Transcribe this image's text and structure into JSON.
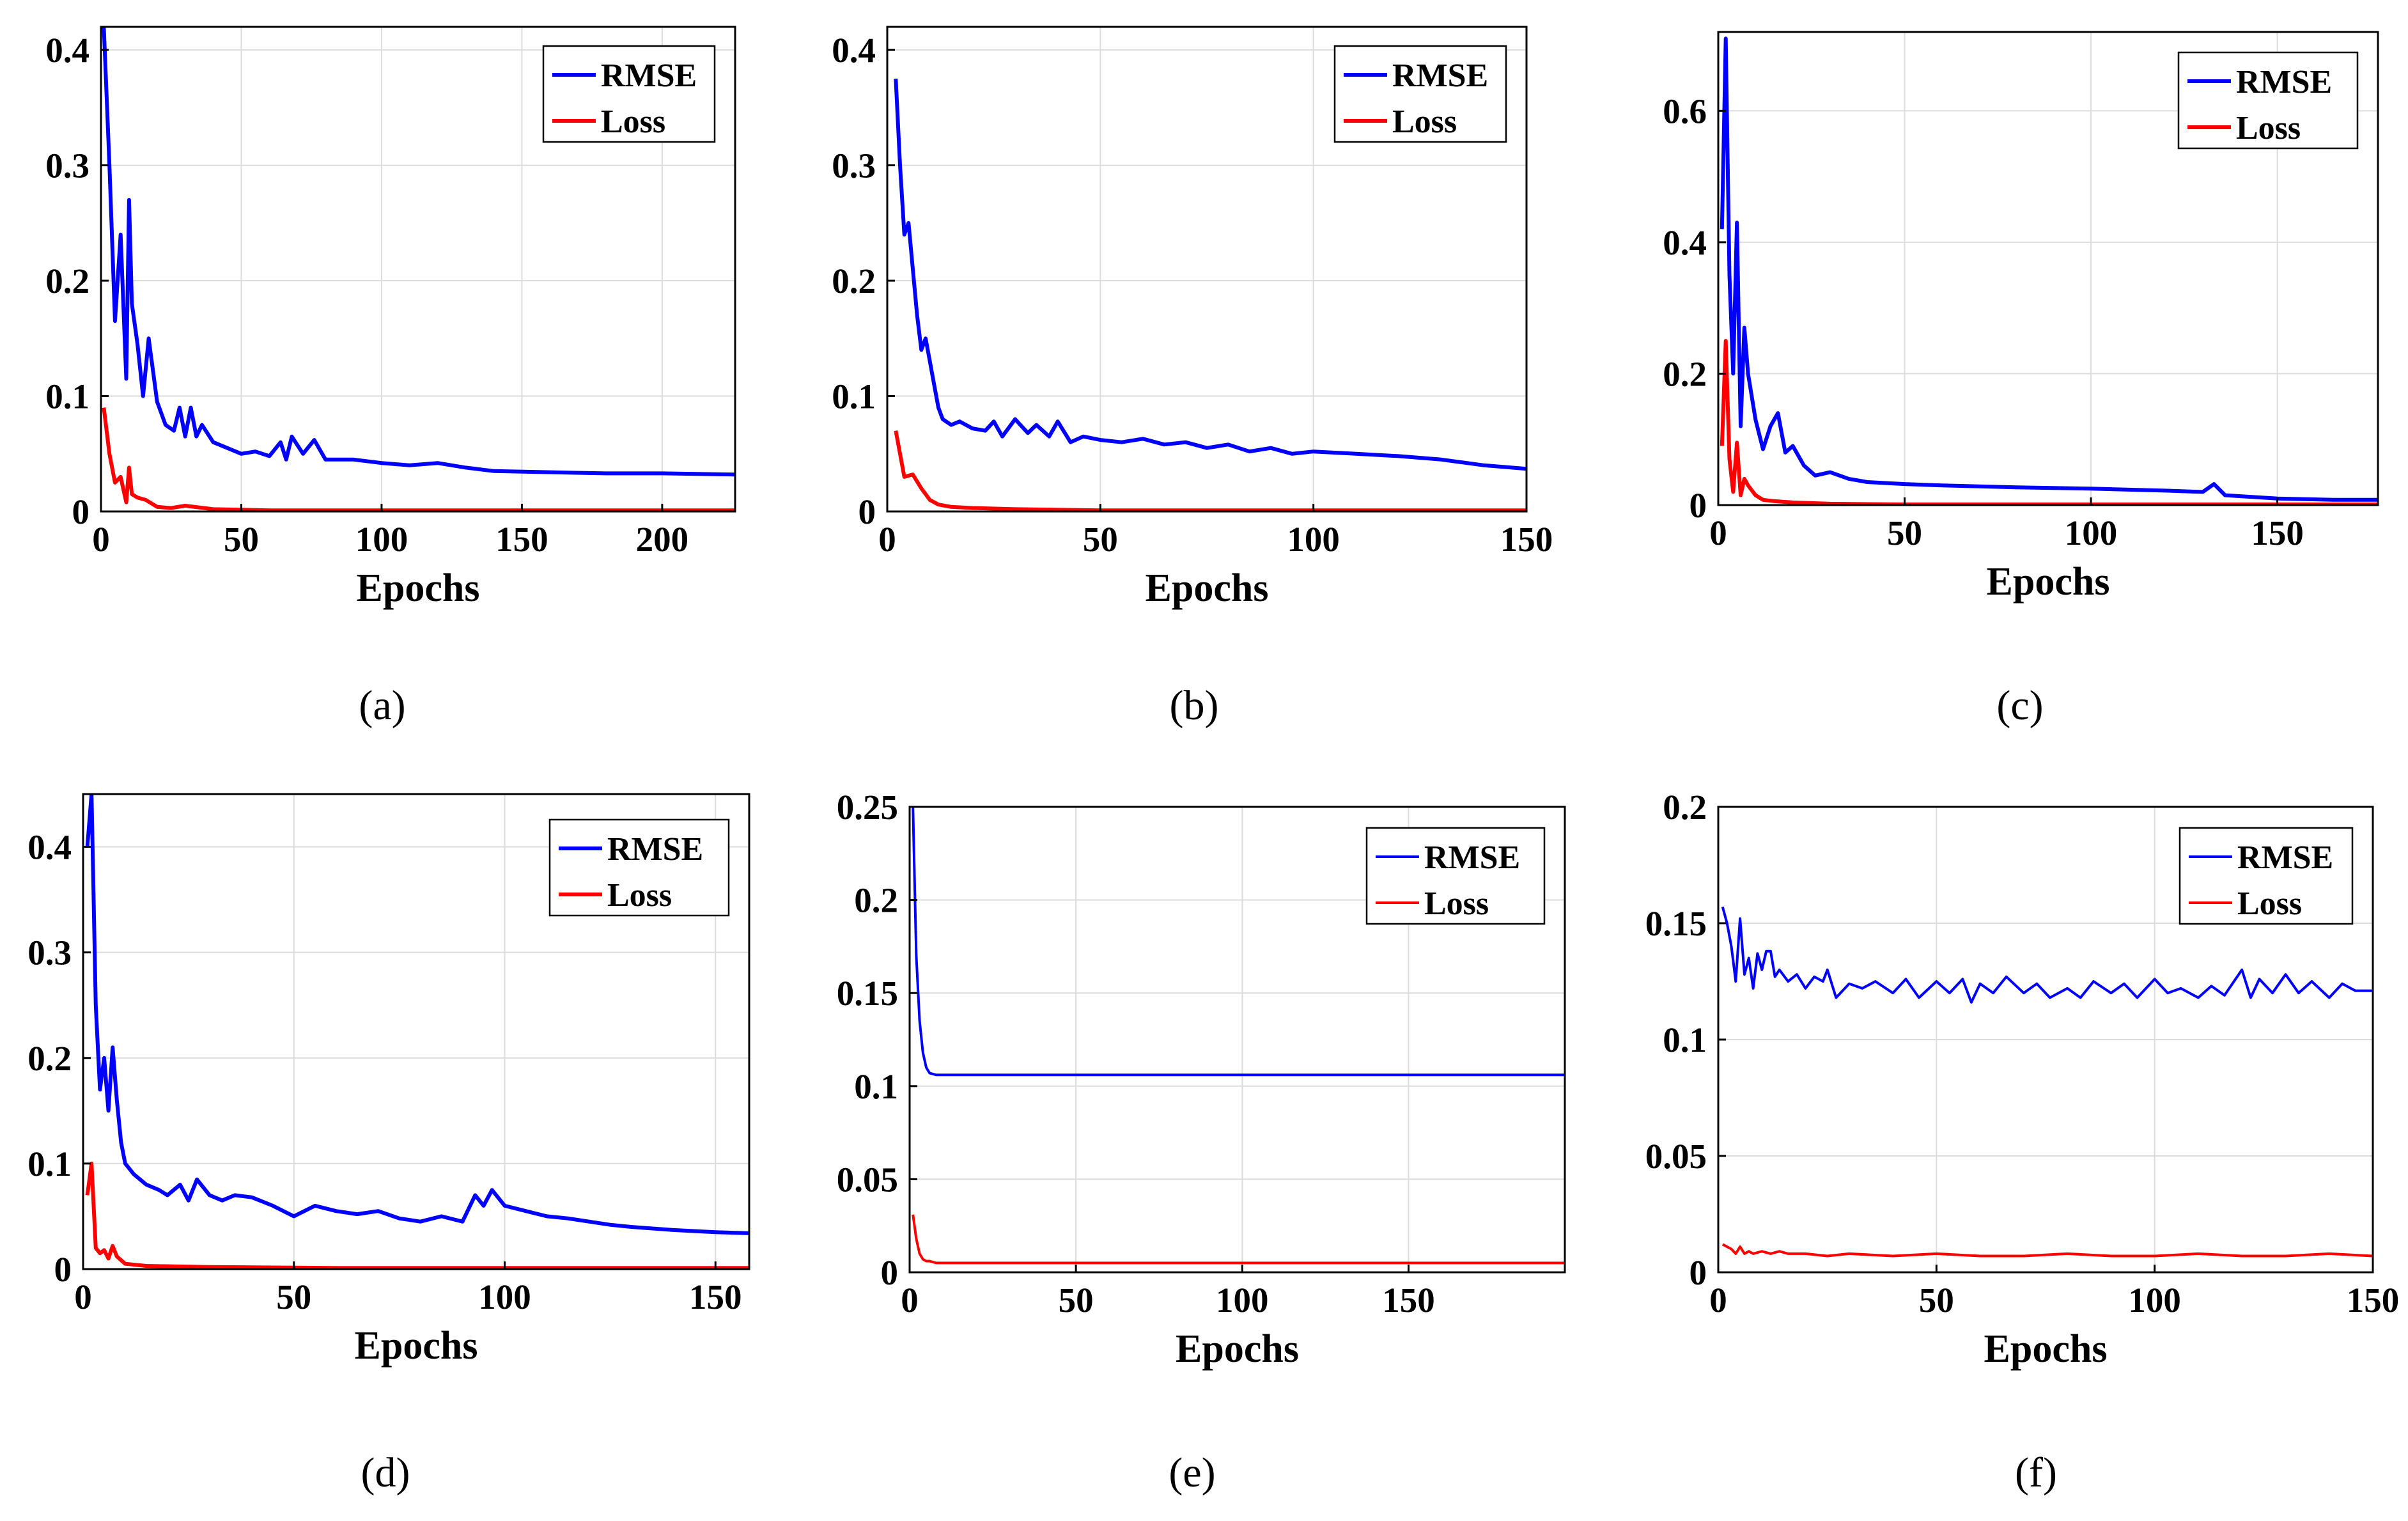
{
  "figure": {
    "colors": {
      "rmse": "#0000ff",
      "loss": "#ff0000"
    },
    "chart_data": [
      {
        "type": "line",
        "panel": "a",
        "caption": "(a)",
        "xlabel": "Epochs",
        "ylabel": "",
        "xlim": [
          0,
          226
        ],
        "ylim": [
          0,
          0.42
        ],
        "xticks": [
          0,
          50,
          100,
          150,
          200
        ],
        "yticks": [
          0,
          0.1,
          0.2,
          0.3,
          0.4
        ],
        "xtick_labels": [
          "0",
          "50",
          "100",
          "150",
          "200"
        ],
        "ytick_labels": [
          "0",
          "0.1",
          "0.2",
          "0.3",
          "0.4"
        ],
        "legend_position": "top-right",
        "grid": true,
        "line_weight": "thick",
        "series": [
          {
            "name": "RMSE",
            "color": "#0000ff",
            "x": [
              1,
              3,
              5,
              7,
              9,
              10,
              11,
              13,
              15,
              17,
              20,
              23,
              26,
              28,
              30,
              32,
              34,
              36,
              40,
              45,
              50,
              55,
              60,
              64,
              66,
              68,
              72,
              76,
              80,
              90,
              100,
              110,
              120,
              130,
              140,
              160,
              180,
              200,
              226
            ],
            "y": [
              0.42,
              0.3,
              0.165,
              0.24,
              0.115,
              0.27,
              0.18,
              0.145,
              0.1,
              0.15,
              0.095,
              0.075,
              0.07,
              0.09,
              0.065,
              0.09,
              0.065,
              0.075,
              0.06,
              0.055,
              0.05,
              0.052,
              0.048,
              0.06,
              0.045,
              0.065,
              0.05,
              0.062,
              0.045,
              0.045,
              0.042,
              0.04,
              0.042,
              0.038,
              0.035,
              0.034,
              0.033,
              0.033,
              0.032
            ]
          },
          {
            "name": "Loss",
            "color": "#ff0000",
            "x": [
              1,
              3,
              5,
              7,
              9,
              10,
              11,
              13,
              16,
              20,
              25,
              30,
              40,
              60,
              100,
              226
            ],
            "y": [
              0.09,
              0.05,
              0.025,
              0.03,
              0.008,
              0.038,
              0.015,
              0.012,
              0.01,
              0.004,
              0.003,
              0.005,
              0.002,
              0.001,
              0.001,
              0.001
            ]
          }
        ]
      },
      {
        "type": "line",
        "panel": "b",
        "caption": "(b)",
        "xlabel": "Epochs",
        "ylabel": "",
        "xlim": [
          0,
          150
        ],
        "ylim": [
          0,
          0.42
        ],
        "xticks": [
          0,
          50,
          100,
          150
        ],
        "yticks": [
          0,
          0.1,
          0.2,
          0.3,
          0.4
        ],
        "xtick_labels": [
          "0",
          "50",
          "100",
          "150"
        ],
        "ytick_labels": [
          "0",
          "0.1",
          "0.2",
          "0.3",
          "0.4"
        ],
        "legend_position": "top-right",
        "grid": true,
        "line_weight": "thick",
        "series": [
          {
            "name": "RMSE",
            "color": "#0000ff",
            "x": [
              2,
              3,
              4,
              5,
              6,
              7,
              8,
              9,
              10,
              11,
              12,
              13,
              15,
              17,
              20,
              23,
              25,
              27,
              30,
              33,
              35,
              38,
              40,
              43,
              46,
              50,
              55,
              60,
              65,
              70,
              75,
              80,
              85,
              90,
              95,
              100,
              110,
              120,
              130,
              140,
              150
            ],
            "y": [
              0.375,
              0.3,
              0.24,
              0.25,
              0.21,
              0.17,
              0.14,
              0.15,
              0.13,
              0.11,
              0.09,
              0.08,
              0.075,
              0.078,
              0.072,
              0.07,
              0.078,
              0.065,
              0.08,
              0.068,
              0.075,
              0.065,
              0.078,
              0.06,
              0.065,
              0.062,
              0.06,
              0.063,
              0.058,
              0.06,
              0.055,
              0.058,
              0.052,
              0.055,
              0.05,
              0.052,
              0.05,
              0.048,
              0.045,
              0.04,
              0.037
            ]
          },
          {
            "name": "Loss",
            "color": "#ff0000",
            "x": [
              2,
              4,
              6,
              8,
              10,
              12,
              15,
              20,
              30,
              50,
              150
            ],
            "y": [
              0.07,
              0.03,
              0.032,
              0.02,
              0.01,
              0.006,
              0.004,
              0.003,
              0.002,
              0.001,
              0.001
            ]
          }
        ]
      },
      {
        "type": "line",
        "panel": "c",
        "caption": "(c)",
        "xlabel": "Epochs",
        "ylabel": "",
        "xlim": [
          0,
          177
        ],
        "ylim": [
          0,
          0.72
        ],
        "xticks": [
          0,
          50,
          100,
          150
        ],
        "yticks": [
          0,
          0.2,
          0.4,
          0.6
        ],
        "xtick_labels": [
          "0",
          "50",
          "100",
          "150"
        ],
        "ytick_labels": [
          "0",
          "0.2",
          "0.4",
          "0.6"
        ],
        "legend_position": "top-right",
        "grid": true,
        "line_weight": "thick",
        "series": [
          {
            "name": "RMSE",
            "color": "#0000ff",
            "x": [
              1,
              2,
              3,
              4,
              5,
              6,
              7,
              8,
              10,
              12,
              14,
              16,
              18,
              20,
              23,
              26,
              30,
              35,
              40,
              50,
              60,
              80,
              100,
              120,
              130,
              133,
              136,
              150,
              165,
              177
            ],
            "y": [
              0.42,
              0.71,
              0.35,
              0.2,
              0.43,
              0.12,
              0.27,
              0.2,
              0.13,
              0.085,
              0.12,
              0.14,
              0.08,
              0.09,
              0.06,
              0.045,
              0.05,
              0.04,
              0.035,
              0.032,
              0.03,
              0.027,
              0.025,
              0.022,
              0.02,
              0.032,
              0.015,
              0.01,
              0.008,
              0.008
            ]
          },
          {
            "name": "Loss",
            "color": "#ff0000",
            "x": [
              1,
              2,
              3,
              4,
              5,
              6,
              7,
              8,
              10,
              12,
              15,
              20,
              30,
              50,
              177
            ],
            "y": [
              0.09,
              0.25,
              0.07,
              0.02,
              0.095,
              0.015,
              0.04,
              0.03,
              0.015,
              0.008,
              0.006,
              0.004,
              0.002,
              0.001,
              0.001
            ]
          }
        ]
      },
      {
        "type": "line",
        "panel": "d",
        "caption": "(d)",
        "xlabel": "Epochs",
        "ylabel": "",
        "xlim": [
          0,
          158
        ],
        "ylim": [
          0,
          0.45
        ],
        "xticks": [
          0,
          50,
          100,
          150
        ],
        "yticks": [
          0,
          0.1,
          0.2,
          0.3,
          0.4
        ],
        "xtick_labels": [
          "0",
          "50",
          "100",
          "150"
        ],
        "ytick_labels": [
          "0",
          "0.1",
          "0.2",
          "0.3",
          "0.4"
        ],
        "legend_position": "top-right",
        "grid": true,
        "line_weight": "thick",
        "series": [
          {
            "name": "RMSE",
            "color": "#0000ff",
            "x": [
              1,
              2,
              3,
              4,
              5,
              6,
              7,
              8,
              9,
              10,
              12,
              15,
              18,
              20,
              23,
              25,
              27,
              30,
              33,
              36,
              40,
              45,
              50,
              55,
              60,
              65,
              70,
              75,
              80,
              85,
              90,
              93,
              95,
              97,
              100,
              105,
              110,
              115,
              120,
              125,
              130,
              140,
              150,
              158
            ],
            "y": [
              0.4,
              0.45,
              0.25,
              0.17,
              0.2,
              0.15,
              0.21,
              0.16,
              0.12,
              0.1,
              0.09,
              0.08,
              0.075,
              0.07,
              0.08,
              0.065,
              0.085,
              0.07,
              0.065,
              0.07,
              0.068,
              0.06,
              0.05,
              0.06,
              0.055,
              0.052,
              0.055,
              0.048,
              0.045,
              0.05,
              0.045,
              0.07,
              0.06,
              0.075,
              0.06,
              0.055,
              0.05,
              0.048,
              0.045,
              0.042,
              0.04,
              0.037,
              0.035,
              0.034
            ]
          },
          {
            "name": "Loss",
            "color": "#ff0000",
            "x": [
              1,
              2,
              3,
              4,
              5,
              6,
              7,
              8,
              10,
              15,
              30,
              60,
              100,
              158
            ],
            "y": [
              0.07,
              0.1,
              0.02,
              0.015,
              0.018,
              0.01,
              0.022,
              0.012,
              0.005,
              0.003,
              0.002,
              0.001,
              0.001,
              0.001
            ]
          }
        ]
      },
      {
        "type": "line",
        "panel": "e",
        "caption": "(e)",
        "xlabel": "Epochs",
        "ylabel": "",
        "xlim": [
          0,
          197
        ],
        "ylim": [
          0,
          0.25
        ],
        "xticks": [
          0,
          50,
          100,
          150
        ],
        "yticks": [
          0,
          0.05,
          0.1,
          0.15,
          0.2,
          0.25
        ],
        "xtick_labels": [
          "0",
          "50",
          "100",
          "150"
        ],
        "ytick_labels": [
          "0",
          "0.05",
          "0.1",
          "0.15",
          "0.2",
          "0.25"
        ],
        "legend_position": "top-right",
        "grid": true,
        "line_weight": "thin",
        "series": [
          {
            "name": "RMSE",
            "color": "#0000ff",
            "x": [
              1,
              2,
              3,
              4,
              5,
              6,
              8,
              10,
              20,
              50,
              100,
              150,
              197
            ],
            "y": [
              0.25,
              0.17,
              0.135,
              0.118,
              0.11,
              0.107,
              0.106,
              0.106,
              0.106,
              0.106,
              0.106,
              0.106,
              0.106
            ]
          },
          {
            "name": "Loss",
            "color": "#ff0000",
            "x": [
              1,
              2,
              3,
              4,
              5,
              6,
              8,
              10,
              20,
              50,
              100,
              150,
              197
            ],
            "y": [
              0.031,
              0.018,
              0.01,
              0.007,
              0.006,
              0.006,
              0.005,
              0.005,
              0.005,
              0.005,
              0.005,
              0.005,
              0.005
            ]
          }
        ]
      },
      {
        "type": "line",
        "panel": "f",
        "caption": "(f)",
        "xlabel": "Epochs",
        "ylabel": "",
        "xlim": [
          0,
          150
        ],
        "ylim": [
          0,
          0.2
        ],
        "xticks": [
          0,
          50,
          100,
          150
        ],
        "yticks": [
          0,
          0.05,
          0.1,
          0.15,
          0.2
        ],
        "xtick_labels": [
          "0",
          "50",
          "100",
          "150"
        ],
        "ytick_labels": [
          "0",
          "0.05",
          "0.1",
          "0.15",
          "0.2"
        ],
        "legend_position": "top-right",
        "grid": true,
        "line_weight": "thin",
        "series": [
          {
            "name": "RMSE",
            "color": "#0000ff",
            "x": [
              1,
              2,
              3,
              4,
              5,
              6,
              7,
              8,
              9,
              10,
              11,
              12,
              13,
              14,
              16,
              18,
              20,
              22,
              24,
              25,
              27,
              30,
              33,
              36,
              40,
              43,
              46,
              50,
              53,
              56,
              58,
              60,
              63,
              66,
              70,
              73,
              76,
              80,
              83,
              86,
              90,
              93,
              96,
              100,
              103,
              106,
              110,
              113,
              116,
              120,
              122,
              124,
              127,
              130,
              133,
              136,
              140,
              143,
              146,
              150
            ],
            "y": [
              0.157,
              0.15,
              0.14,
              0.125,
              0.152,
              0.128,
              0.135,
              0.122,
              0.137,
              0.13,
              0.138,
              0.138,
              0.127,
              0.13,
              0.125,
              0.128,
              0.122,
              0.127,
              0.125,
              0.13,
              0.118,
              0.124,
              0.122,
              0.125,
              0.12,
              0.126,
              0.118,
              0.125,
              0.12,
              0.126,
              0.116,
              0.124,
              0.12,
              0.127,
              0.12,
              0.124,
              0.118,
              0.122,
              0.118,
              0.125,
              0.12,
              0.124,
              0.118,
              0.126,
              0.12,
              0.122,
              0.118,
              0.123,
              0.119,
              0.13,
              0.118,
              0.126,
              0.12,
              0.128,
              0.12,
              0.125,
              0.118,
              0.124,
              0.121,
              0.121
            ]
          },
          {
            "name": "Loss",
            "color": "#ff0000",
            "x": [
              1,
              3,
              4,
              5,
              6,
              7,
              8,
              10,
              12,
              14,
              16,
              20,
              25,
              30,
              40,
              50,
              60,
              70,
              80,
              90,
              100,
              110,
              120,
              130,
              140,
              150
            ],
            "y": [
              0.012,
              0.01,
              0.008,
              0.011,
              0.008,
              0.009,
              0.008,
              0.009,
              0.008,
              0.009,
              0.008,
              0.008,
              0.007,
              0.008,
              0.007,
              0.008,
              0.007,
              0.007,
              0.008,
              0.007,
              0.007,
              0.008,
              0.007,
              0.007,
              0.008,
              0.007
            ]
          }
        ]
      }
    ]
  }
}
